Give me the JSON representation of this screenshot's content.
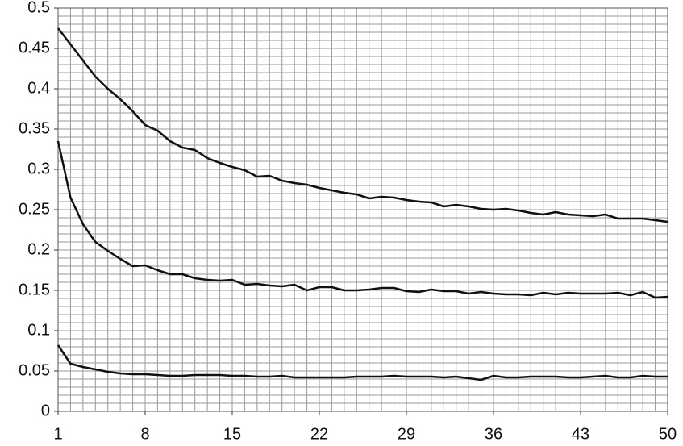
{
  "chart_data": {
    "type": "line",
    "x": [
      1,
      2,
      3,
      4,
      5,
      6,
      7,
      8,
      9,
      10,
      11,
      12,
      13,
      14,
      15,
      16,
      17,
      18,
      19,
      20,
      21,
      22,
      23,
      24,
      25,
      26,
      27,
      28,
      29,
      30,
      31,
      32,
      33,
      34,
      35,
      36,
      37,
      38,
      39,
      40,
      41,
      42,
      43,
      44,
      45,
      46,
      47,
      48,
      49,
      50
    ],
    "series": [
      {
        "color": "#111111",
        "values": [
          0.475,
          0.455,
          0.435,
          0.415,
          0.4,
          0.387,
          0.372,
          0.355,
          0.348,
          0.335,
          0.327,
          0.324,
          0.314,
          0.308,
          0.303,
          0.299,
          0.291,
          0.292,
          0.286,
          0.283,
          0.281,
          0.277,
          0.274,
          0.271,
          0.269,
          0.264,
          0.266,
          0.265,
          0.262,
          0.26,
          0.259,
          0.254,
          0.256,
          0.254,
          0.251,
          0.25,
          0.251,
          0.249,
          0.246,
          0.244,
          0.247,
          0.244,
          0.243,
          0.242,
          0.244,
          0.239,
          0.239,
          0.239,
          0.237,
          0.235
        ]
      },
      {
        "color": "#111111",
        "values": [
          0.335,
          0.265,
          0.232,
          0.21,
          0.199,
          0.189,
          0.18,
          0.181,
          0.175,
          0.17,
          0.17,
          0.165,
          0.163,
          0.162,
          0.163,
          0.157,
          0.158,
          0.156,
          0.155,
          0.157,
          0.15,
          0.154,
          0.154,
          0.15,
          0.15,
          0.151,
          0.153,
          0.153,
          0.149,
          0.148,
          0.151,
          0.149,
          0.149,
          0.146,
          0.148,
          0.146,
          0.145,
          0.145,
          0.144,
          0.147,
          0.145,
          0.147,
          0.146,
          0.146,
          0.146,
          0.147,
          0.144,
          0.148,
          0.141,
          0.142
        ]
      },
      {
        "color": "#111111",
        "values": [
          0.082,
          0.059,
          0.055,
          0.052,
          0.049,
          0.047,
          0.046,
          0.046,
          0.045,
          0.044,
          0.044,
          0.045,
          0.045,
          0.045,
          0.044,
          0.044,
          0.043,
          0.043,
          0.044,
          0.042,
          0.042,
          0.042,
          0.042,
          0.042,
          0.043,
          0.043,
          0.043,
          0.044,
          0.043,
          0.043,
          0.043,
          0.042,
          0.043,
          0.041,
          0.039,
          0.044,
          0.042,
          0.042,
          0.043,
          0.043,
          0.043,
          0.042,
          0.042,
          0.043,
          0.044,
          0.042,
          0.042,
          0.044,
          0.043,
          0.043
        ]
      }
    ],
    "xlim": [
      1,
      50
    ],
    "xticks": [
      1,
      8,
      15,
      22,
      29,
      36,
      43,
      50
    ],
    "ylim": [
      0,
      0.5
    ],
    "yticks": [
      0,
      0.05,
      0.1,
      0.15,
      0.2,
      0.25,
      0.3,
      0.35,
      0.4,
      0.45,
      0.5
    ],
    "grid": true,
    "x_minor_step": 1,
    "y_minor_step": 0.01
  }
}
